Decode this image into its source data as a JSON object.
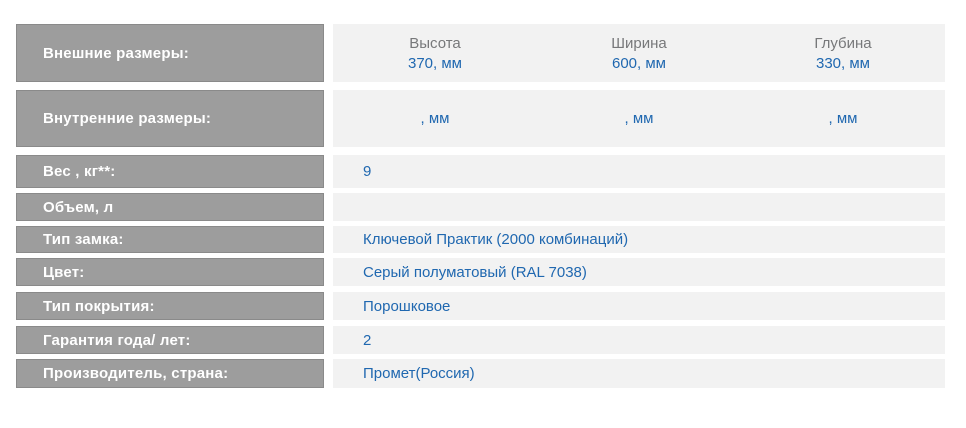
{
  "colors": {
    "label_background": "#9d9d9d",
    "label_border": "#8a8a8a",
    "label_text": "#ffffff",
    "value_background": "#f2f2f2",
    "value_text_blue": "#2068b0",
    "dim_header_gray": "#77787a",
    "page_background": "#ffffff"
  },
  "spec_table": {
    "dimension_rows": [
      {
        "label": "Внешние размеры:",
        "columns": [
          {
            "header": "Высота",
            "value": "370, мм"
          },
          {
            "header": "Ширина",
            "value": "600, мм"
          },
          {
            "header": "Глубина",
            "value": "330, мм"
          }
        ]
      },
      {
        "label": "Внутренние размеры:",
        "columns": [
          {
            "header": "",
            "value": ", мм"
          },
          {
            "header": "",
            "value": ", мм"
          },
          {
            "header": "",
            "value": ", мм"
          }
        ]
      }
    ],
    "rows": [
      {
        "label": "Вес , кг**:",
        "value": "9"
      },
      {
        "label": "Объем, л",
        "value": ""
      },
      {
        "label": "Тип замка:",
        "value": "Ключевой Практик (2000 комбинаций)"
      },
      {
        "label": "Цвет:",
        "value": "Серый полуматовый (RAL 7038)"
      },
      {
        "label": "Тип покрытия:",
        "value": "Порошковое"
      },
      {
        "label": "Гарантия года/ лет:",
        "value": "2"
      },
      {
        "label": "Производитель, страна:",
        "value": "Промет(Россия)"
      }
    ]
  }
}
